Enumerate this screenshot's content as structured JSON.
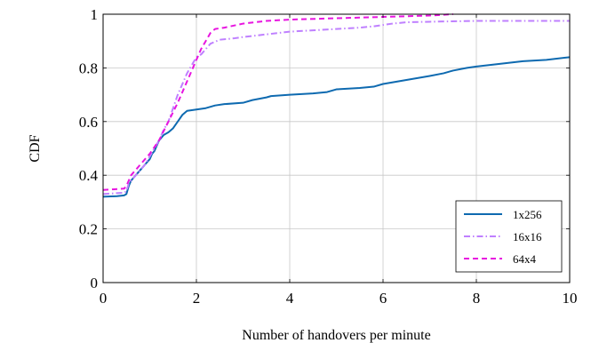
{
  "chart_data": {
    "type": "line",
    "title": "",
    "xlabel": "Number of handovers per minute",
    "ylabel": "CDF",
    "xlim": [
      0,
      10
    ],
    "ylim": [
      0,
      1
    ],
    "xticks": [
      "0",
      "2",
      "4",
      "6",
      "8",
      "10"
    ],
    "yticks": [
      "0",
      "0.2",
      "0.4",
      "0.6",
      "0.8",
      "1"
    ],
    "grid": true,
    "legend_position": "bottom-right",
    "series": [
      {
        "name": "1x256",
        "color": "#0e6ab0",
        "style": "solid",
        "points": [
          [
            0,
            0.32
          ],
          [
            0.3,
            0.322
          ],
          [
            0.45,
            0.325
          ],
          [
            0.5,
            0.33
          ],
          [
            0.55,
            0.36
          ],
          [
            0.6,
            0.38
          ],
          [
            0.7,
            0.4
          ],
          [
            0.8,
            0.42
          ],
          [
            0.9,
            0.44
          ],
          [
            1.0,
            0.46
          ],
          [
            1.05,
            0.48
          ],
          [
            1.1,
            0.49
          ],
          [
            1.15,
            0.51
          ],
          [
            1.2,
            0.53
          ],
          [
            1.3,
            0.55
          ],
          [
            1.4,
            0.56
          ],
          [
            1.5,
            0.575
          ],
          [
            1.6,
            0.6
          ],
          [
            1.7,
            0.625
          ],
          [
            1.8,
            0.64
          ],
          [
            2.0,
            0.645
          ],
          [
            2.2,
            0.65
          ],
          [
            2.4,
            0.66
          ],
          [
            2.6,
            0.665
          ],
          [
            3.0,
            0.67
          ],
          [
            3.2,
            0.68
          ],
          [
            3.5,
            0.69
          ],
          [
            3.6,
            0.695
          ],
          [
            4.0,
            0.7
          ],
          [
            4.5,
            0.705
          ],
          [
            4.8,
            0.71
          ],
          [
            5.0,
            0.72
          ],
          [
            5.5,
            0.725
          ],
          [
            5.8,
            0.73
          ],
          [
            6.0,
            0.74
          ],
          [
            6.5,
            0.755
          ],
          [
            7.0,
            0.77
          ],
          [
            7.3,
            0.78
          ],
          [
            7.5,
            0.79
          ],
          [
            7.8,
            0.8
          ],
          [
            8.0,
            0.805
          ],
          [
            8.5,
            0.815
          ],
          [
            9.0,
            0.825
          ],
          [
            9.5,
            0.83
          ],
          [
            10,
            0.84
          ]
        ]
      },
      {
        "name": "16x16",
        "color": "#bf80ff",
        "style": "dashdot",
        "points": [
          [
            0,
            0.33
          ],
          [
            0.45,
            0.335
          ],
          [
            0.5,
            0.34
          ],
          [
            0.55,
            0.37
          ],
          [
            0.7,
            0.4
          ],
          [
            0.9,
            0.44
          ],
          [
            1.0,
            0.47
          ],
          [
            1.1,
            0.5
          ],
          [
            1.2,
            0.53
          ],
          [
            1.3,
            0.57
          ],
          [
            1.4,
            0.6
          ],
          [
            1.5,
            0.65
          ],
          [
            1.6,
            0.7
          ],
          [
            1.7,
            0.74
          ],
          [
            1.8,
            0.78
          ],
          [
            1.9,
            0.81
          ],
          [
            2.0,
            0.84
          ],
          [
            2.1,
            0.85
          ],
          [
            2.2,
            0.87
          ],
          [
            2.3,
            0.89
          ],
          [
            2.5,
            0.905
          ],
          [
            2.8,
            0.91
          ],
          [
            3.0,
            0.915
          ],
          [
            3.5,
            0.925
          ],
          [
            4.0,
            0.935
          ],
          [
            4.5,
            0.94
          ],
          [
            5.0,
            0.945
          ],
          [
            5.5,
            0.95
          ],
          [
            5.8,
            0.955
          ],
          [
            6.0,
            0.96
          ],
          [
            6.2,
            0.965
          ],
          [
            6.5,
            0.97
          ],
          [
            7.0,
            0.972
          ],
          [
            8.0,
            0.975
          ],
          [
            9.0,
            0.975
          ],
          [
            10,
            0.975
          ]
        ]
      },
      {
        "name": "64x4",
        "color": "#e815e0",
        "style": "dashed",
        "points": [
          [
            0,
            0.345
          ],
          [
            0.45,
            0.35
          ],
          [
            0.5,
            0.36
          ],
          [
            0.6,
            0.4
          ],
          [
            0.8,
            0.44
          ],
          [
            1.0,
            0.48
          ],
          [
            1.2,
            0.53
          ],
          [
            1.4,
            0.6
          ],
          [
            1.6,
            0.67
          ],
          [
            1.8,
            0.75
          ],
          [
            1.9,
            0.79
          ],
          [
            2.0,
            0.83
          ],
          [
            2.1,
            0.87
          ],
          [
            2.2,
            0.9
          ],
          [
            2.3,
            0.93
          ],
          [
            2.4,
            0.945
          ],
          [
            2.6,
            0.95
          ],
          [
            3.0,
            0.965
          ],
          [
            3.5,
            0.975
          ],
          [
            4.0,
            0.98
          ],
          [
            5.0,
            0.985
          ],
          [
            6.0,
            0.99
          ],
          [
            7.0,
            0.995
          ],
          [
            7.5,
            1.0
          ]
        ]
      }
    ]
  }
}
